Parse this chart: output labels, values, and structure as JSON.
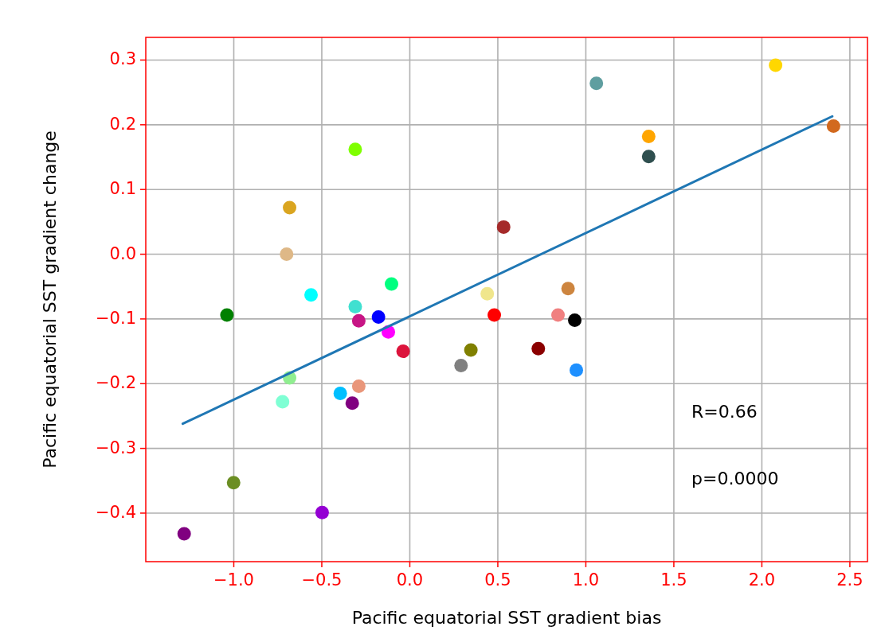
{
  "chart_data": {
    "type": "scatter",
    "xlabel": "Pacific equatorial SST gradient bias",
    "ylabel": "Pacific equatorial SST gradient change",
    "xlim": [
      -1.5,
      2.6
    ],
    "ylim": [
      -0.475,
      0.335
    ],
    "xticks": [
      {
        "value": -1.0,
        "label": "−1.0"
      },
      {
        "value": -0.5,
        "label": "−0.5"
      },
      {
        "value": 0.0,
        "label": "0.0"
      },
      {
        "value": 0.5,
        "label": "0.5"
      },
      {
        "value": 1.0,
        "label": "1.0"
      },
      {
        "value": 1.5,
        "label": "1.5"
      },
      {
        "value": 2.0,
        "label": "2.0"
      },
      {
        "value": 2.5,
        "label": "2.5"
      }
    ],
    "yticks": [
      {
        "value": -0.4,
        "label": "−0.4"
      },
      {
        "value": -0.3,
        "label": "−0.3"
      },
      {
        "value": -0.2,
        "label": "−0.2"
      },
      {
        "value": -0.1,
        "label": "−0.1"
      },
      {
        "value": 0.0,
        "label": "0.0"
      },
      {
        "value": 0.1,
        "label": "0.1"
      },
      {
        "value": 0.2,
        "label": "0.2"
      },
      {
        "value": 0.3,
        "label": "0.3"
      }
    ],
    "grid": true,
    "series": [
      {
        "marker": "circle",
        "x": [
          -0.31,
          -0.683,
          -0.7,
          -0.561,
          -0.104,
          0.44,
          0.533,
          1.06,
          2.078,
          1.357,
          1.357,
          2.407,
          0.899,
          -0.31,
          -1.039,
          -0.29,
          -0.178,
          -0.122,
          -0.038,
          0.48,
          0.347,
          0.291,
          -0.683,
          -0.723,
          -0.395,
          -0.29,
          -0.327,
          -1.001,
          -0.498,
          -1.282,
          0.842,
          0.937,
          0.73,
          0.946
        ],
        "values": [
          0.162,
          0.072,
          0.0,
          -0.063,
          -0.046,
          -0.061,
          0.042,
          0.264,
          0.292,
          0.182,
          0.151,
          0.198,
          -0.053,
          -0.081,
          -0.094,
          -0.103,
          -0.097,
          -0.12,
          -0.15,
          -0.094,
          -0.148,
          -0.172,
          -0.191,
          -0.228,
          -0.215,
          -0.204,
          -0.23,
          -0.353,
          -0.399,
          -0.432,
          -0.094,
          -0.102,
          -0.146,
          -0.179
        ],
        "colors": [
          "#7fff00",
          "#daa520",
          "#deb887",
          "#00ffff",
          "#00ff7f",
          "#f0e68c",
          "#a52a2a",
          "#5f9ea0",
          "#ffd700",
          "#ffa500",
          "#2f4f4f",
          "#d2691e",
          "#cd853f",
          "#40e0d0",
          "#008000",
          "#c71585",
          "#0000ff",
          "#ff00ff",
          "#dc143c",
          "#ff0000",
          "#808000",
          "#808080",
          "#90ee90",
          "#7fffd4",
          "#00bfff",
          "#e9967a",
          "#800080",
          "#6b8e23",
          "#9400d3",
          "#800080",
          "#f08080",
          "#000000",
          "#8b0000",
          "#1e90ff"
        ]
      },
      {
        "type": "line",
        "x": [
          -1.29,
          2.4
        ],
        "values": [
          -0.262,
          0.213
        ],
        "color": "#1f77b4",
        "marker": "none"
      }
    ],
    "annotations": [
      "R=0.66",
      "p=0.0000"
    ]
  }
}
